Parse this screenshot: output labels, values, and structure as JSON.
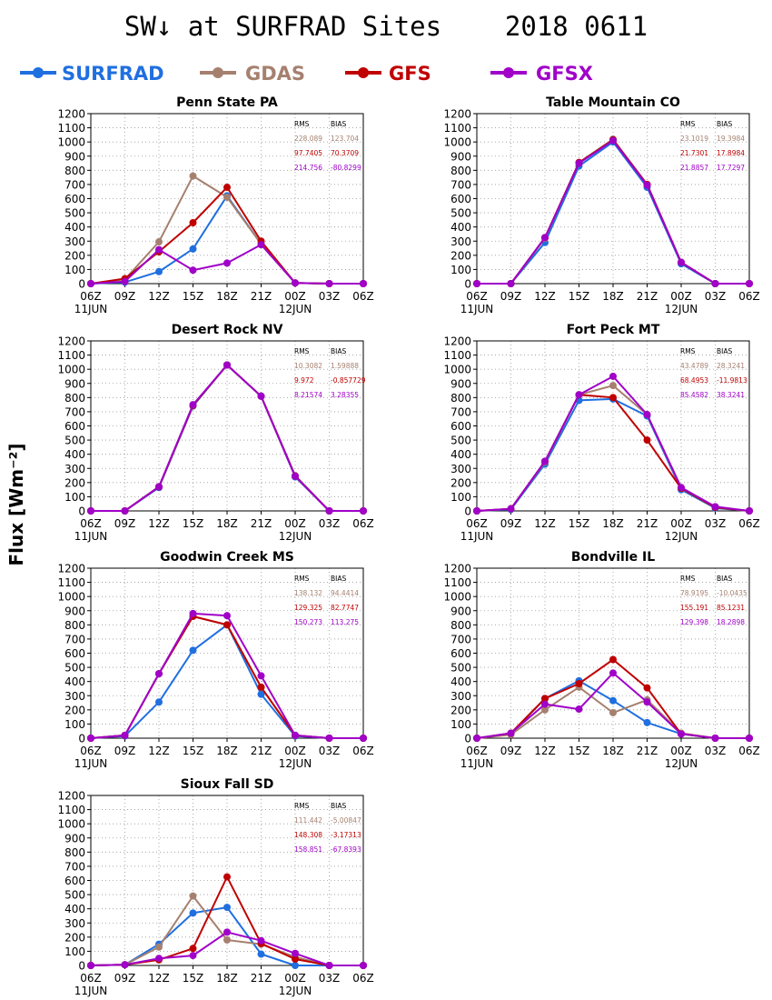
{
  "title": "SW↓ at SURFRAD Sites    2018 0611",
  "ylabel": "Flux [Wm⁻²]",
  "legend": [
    {
      "name": "SURFRAD",
      "color": "#1f6fe0"
    },
    {
      "name": "GDAS",
      "color": "#a6806f"
    },
    {
      "name": "GFS",
      "color": "#c00000"
    },
    {
      "name": "GFSX",
      "color": "#a000c8"
    }
  ],
  "stats_headers": [
    "RMS",
    "BIAS"
  ],
  "chart_data": [
    {
      "type": "line",
      "title": "Penn State PA",
      "categories": [
        "06Z",
        "09Z",
        "12Z",
        "15Z",
        "18Z",
        "21Z",
        "00Z",
        "03Z",
        "06Z"
      ],
      "date_labels": [
        "11JUN",
        "12JUN"
      ],
      "ylim": [
        0,
        1200
      ],
      "yticks": [
        0,
        100,
        200,
        300,
        400,
        500,
        600,
        700,
        800,
        900,
        1000,
        1100,
        1200
      ],
      "grid": true,
      "series": [
        {
          "name": "SURFRAD",
          "values": [
            0,
            10,
            85,
            245,
            620,
            280,
            5,
            0,
            0
          ]
        },
        {
          "name": "GDAS",
          "values": [
            0,
            30,
            295,
            760,
            610,
            280,
            5,
            0,
            0
          ]
        },
        {
          "name": "GFS",
          "values": [
            0,
            35,
            225,
            430,
            680,
            300,
            5,
            0,
            0
          ]
        },
        {
          "name": "GFSX",
          "values": [
            0,
            15,
            240,
            95,
            145,
            275,
            5,
            0,
            0
          ]
        }
      ],
      "stats": [
        [
          "228.089",
          "123.704"
        ],
        [
          "97.7405",
          "70.3709"
        ],
        [
          "214.756",
          "-80.8299"
        ]
      ]
    },
    {
      "type": "line",
      "title": "Table Mountain CO",
      "categories": [
        "06Z",
        "09Z",
        "12Z",
        "15Z",
        "18Z",
        "21Z",
        "00Z",
        "03Z",
        "06Z"
      ],
      "date_labels": [
        "11JUN",
        "12JUN"
      ],
      "ylim": [
        0,
        1200
      ],
      "yticks": [
        0,
        100,
        200,
        300,
        400,
        500,
        600,
        700,
        800,
        900,
        1000,
        1100,
        1200
      ],
      "grid": true,
      "series": [
        {
          "name": "SURFRAD",
          "values": [
            0,
            0,
            290,
            830,
            1000,
            680,
            140,
            0,
            0
          ]
        },
        {
          "name": "GDAS",
          "values": [
            0,
            0,
            320,
            855,
            1020,
            700,
            150,
            0,
            0
          ]
        },
        {
          "name": "GFS",
          "values": [
            0,
            0,
            325,
            855,
            1015,
            700,
            150,
            0,
            0
          ]
        },
        {
          "name": "GFSX",
          "values": [
            0,
            0,
            325,
            850,
            1010,
            695,
            150,
            0,
            0
          ]
        }
      ],
      "stats": [
        [
          "23.1019",
          "19.3984"
        ],
        [
          "21.7301",
          "17.8984"
        ],
        [
          "21.8857",
          "17.7297"
        ]
      ]
    },
    {
      "type": "line",
      "title": "Desert Rock NV",
      "categories": [
        "06Z",
        "09Z",
        "12Z",
        "15Z",
        "18Z",
        "21Z",
        "00Z",
        "03Z",
        "06Z"
      ],
      "date_labels": [
        "11JUN",
        "12JUN"
      ],
      "ylim": [
        0,
        1200
      ],
      "yticks": [
        0,
        100,
        200,
        300,
        400,
        500,
        600,
        700,
        800,
        900,
        1000,
        1100,
        1200
      ],
      "grid": true,
      "series": [
        {
          "name": "SURFRAD",
          "values": [
            0,
            0,
            165,
            740,
            1030,
            810,
            240,
            0,
            0
          ]
        },
        {
          "name": "GDAS",
          "values": [
            0,
            0,
            170,
            745,
            1030,
            810,
            250,
            0,
            0
          ]
        },
        {
          "name": "GFS",
          "values": [
            0,
            0,
            170,
            745,
            1030,
            810,
            245,
            0,
            0
          ]
        },
        {
          "name": "GFSX",
          "values": [
            0,
            0,
            170,
            750,
            1030,
            810,
            245,
            0,
            0
          ]
        }
      ],
      "stats": [
        [
          "10.3082",
          "1.59888"
        ],
        [
          "9.972",
          "-0.857729"
        ],
        [
          "8.21574",
          "3.28355"
        ]
      ]
    },
    {
      "type": "line",
      "title": "Fort Peck MT",
      "categories": [
        "06Z",
        "09Z",
        "12Z",
        "15Z",
        "18Z",
        "21Z",
        "00Z",
        "03Z",
        "06Z"
      ],
      "date_labels": [
        "11JUN",
        "12JUN"
      ],
      "ylim": [
        0,
        1200
      ],
      "yticks": [
        0,
        100,
        200,
        300,
        400,
        500,
        600,
        700,
        800,
        900,
        1000,
        1100,
        1200
      ],
      "grid": true,
      "series": [
        {
          "name": "SURFRAD",
          "values": [
            0,
            10,
            330,
            780,
            790,
            670,
            150,
            20,
            0
          ]
        },
        {
          "name": "GDAS",
          "values": [
            0,
            15,
            345,
            820,
            885,
            680,
            160,
            25,
            0
          ]
        },
        {
          "name": "GFS",
          "values": [
            0,
            15,
            350,
            820,
            800,
            500,
            160,
            25,
            0
          ]
        },
        {
          "name": "GFSX",
          "values": [
            0,
            15,
            350,
            820,
            950,
            680,
            165,
            30,
            0
          ]
        }
      ],
      "stats": [
        [
          "43.4789",
          "28.3241"
        ],
        [
          "68.4953",
          "-11.9813"
        ],
        [
          "85.4582",
          "38.3241"
        ]
      ]
    },
    {
      "type": "line",
      "title": "Goodwin Creek MS",
      "categories": [
        "06Z",
        "09Z",
        "12Z",
        "15Z",
        "18Z",
        "21Z",
        "00Z",
        "03Z",
        "06Z"
      ],
      "date_labels": [
        "11JUN",
        "12JUN"
      ],
      "ylim": [
        0,
        1200
      ],
      "yticks": [
        0,
        100,
        200,
        300,
        400,
        500,
        600,
        700,
        800,
        900,
        1000,
        1100,
        1200
      ],
      "grid": true,
      "series": [
        {
          "name": "SURFRAD",
          "values": [
            0,
            15,
            255,
            620,
            800,
            310,
            15,
            0,
            0
          ]
        },
        {
          "name": "GDAS",
          "values": [
            0,
            20,
            455,
            860,
            800,
            360,
            20,
            0,
            0
          ]
        },
        {
          "name": "GFS",
          "values": [
            0,
            20,
            455,
            860,
            800,
            360,
            20,
            0,
            0
          ]
        },
        {
          "name": "GFSX",
          "values": [
            0,
            20,
            455,
            880,
            865,
            440,
            20,
            0,
            0
          ]
        }
      ],
      "stats": [
        [
          "138.132",
          "94.4414"
        ],
        [
          "129.325",
          "82.7747"
        ],
        [
          "150.273",
          "113.275"
        ]
      ]
    },
    {
      "type": "line",
      "title": "Bondville IL",
      "categories": [
        "06Z",
        "09Z",
        "12Z",
        "15Z",
        "18Z",
        "21Z",
        "00Z",
        "03Z",
        "06Z"
      ],
      "date_labels": [
        "11JUN",
        "12JUN"
      ],
      "ylim": [
        0,
        1200
      ],
      "yticks": [
        0,
        100,
        200,
        300,
        400,
        500,
        600,
        700,
        800,
        900,
        1000,
        1100,
        1200
      ],
      "grid": true,
      "series": [
        {
          "name": "SURFRAD",
          "values": [
            0,
            30,
            280,
            405,
            265,
            110,
            30,
            0,
            0
          ]
        },
        {
          "name": "GDAS",
          "values": [
            0,
            25,
            200,
            360,
            180,
            270,
            35,
            0,
            0
          ]
        },
        {
          "name": "GFS",
          "values": [
            0,
            35,
            280,
            385,
            555,
            355,
            30,
            0,
            0
          ]
        },
        {
          "name": "GFSX",
          "values": [
            0,
            35,
            240,
            205,
            460,
            255,
            30,
            0,
            0
          ]
        }
      ],
      "stats": [
        [
          "78.9195",
          "-10.0435"
        ],
        [
          "155.191",
          "85.1231"
        ],
        [
          "129.398",
          "18.2898"
        ]
      ]
    },
    {
      "type": "line",
      "title": "Sioux Fall SD",
      "categories": [
        "06Z",
        "09Z",
        "12Z",
        "15Z",
        "18Z",
        "21Z",
        "00Z",
        "03Z",
        "06Z"
      ],
      "date_labels": [
        "11JUN",
        "12JUN"
      ],
      "ylim": [
        0,
        1200
      ],
      "yticks": [
        0,
        100,
        200,
        300,
        400,
        500,
        600,
        700,
        800,
        900,
        1000,
        1100,
        1200
      ],
      "grid": true,
      "series": [
        {
          "name": "SURFRAD",
          "values": [
            0,
            5,
            150,
            370,
            410,
            80,
            0,
            0,
            0
          ]
        },
        {
          "name": "GDAS",
          "values": [
            0,
            5,
            130,
            490,
            180,
            150,
            60,
            0,
            0
          ]
        },
        {
          "name": "GFS",
          "values": [
            0,
            5,
            40,
            120,
            625,
            155,
            45,
            0,
            0
          ]
        },
        {
          "name": "GFSX",
          "values": [
            0,
            5,
            50,
            70,
            235,
            175,
            85,
            0,
            0
          ]
        }
      ],
      "stats": [
        [
          "111.442",
          "-5.00847"
        ],
        [
          "148.308",
          "-3.17313"
        ],
        [
          "158.851",
          "-67.8393"
        ]
      ]
    }
  ]
}
